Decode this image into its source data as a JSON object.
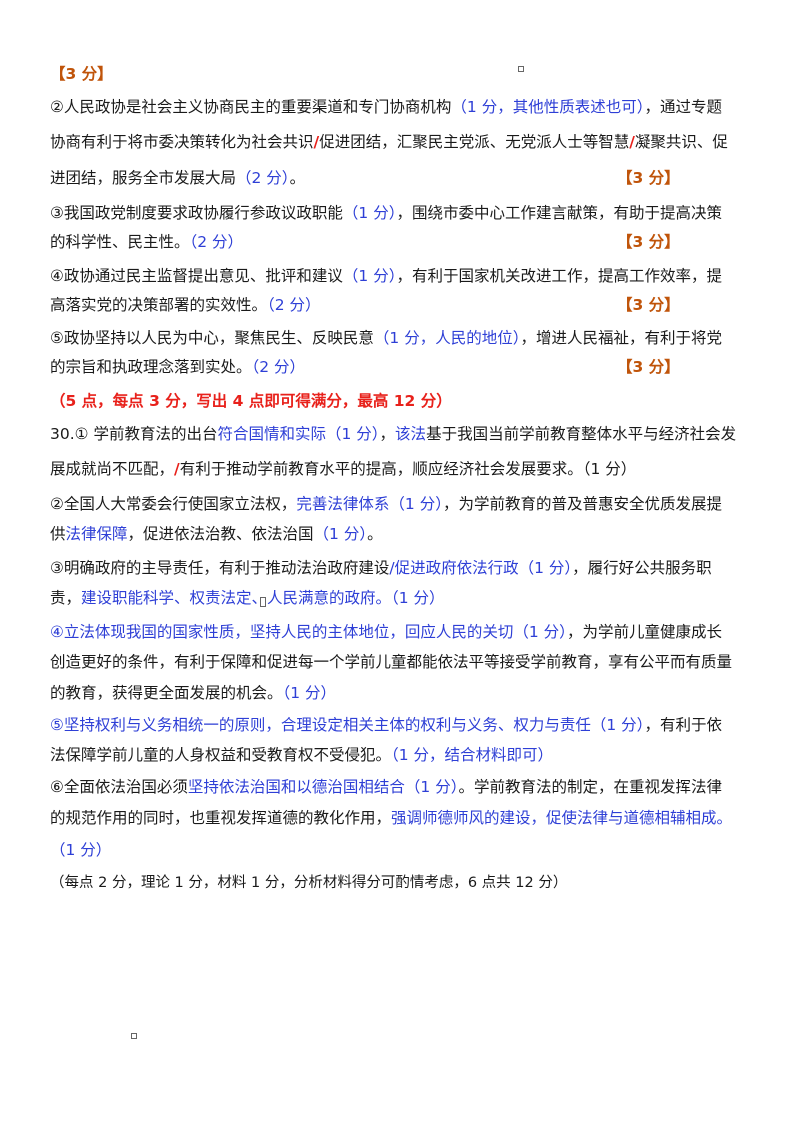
{
  "q29": {
    "score_top": "【3 分】",
    "p2_a": "②人民政协是社会主义协商民主的重要渠道和专门协商机构",
    "p2_b": "（1 分，其他性质表述也可）",
    "p2_c": "，通过专题",
    "p2_line2_a": "协商有利于将市委决策转化为社会共识",
    "p2_line2_b": "促进团结，汇聚民主党派、无党派人士等智慧",
    "p2_line2_c": "凝聚共识、促",
    "p2_line3_a": "进团结，服务全市发展大局",
    "p2_line3_b": "（2 分）",
    "p2_line3_c": "。",
    "p2_score": "【3 分】",
    "p3_a": "③我国政党制度要求政协履行参政议政职能",
    "p3_b": "（1 分）",
    "p3_c": "，围绕市委中心工作建言献策，有助于提高决策",
    "p3_line2_a": "的科学性、民主性。",
    "p3_line2_b": "（2 分）",
    "p3_score": "【3 分】",
    "p4_a": "④政协通过民主监督提出意见、批评和建议",
    "p4_b": "（1 分）",
    "p4_c": "，有利于国家机关改进工作，提高工作效率，提",
    "p4_line2_a": "高落实党的决策部署的实效性。",
    "p4_line2_b": "（2 分）",
    "p4_score": "【3 分】",
    "p5_a": "⑤政协坚持以人民为中心，聚焦民生、反映民意",
    "p5_b": "（1 分，人民的地位）",
    "p5_c": "，增进人民福祉，有利于将党",
    "p5_line2_a": "的宗旨和执政理念落到实处。",
    "p5_line2_b": "（2 分）",
    "p5_score": "【3 分】",
    "rule": "（5 点，每点  3 分，写出  4 点即可得满分，最高  12 分）",
    "slash": "/"
  },
  "q30": {
    "p1_a": "30.①  学前教育法的出台",
    "p1_b": "符合国情和实际（1 分）",
    "p1_c": "，",
    "p1_d": "该法",
    "p1_e": "基于我国当前学前教育整体水平与经济社会发",
    "p1_line2_a": "展成就尚不匹配，",
    "p1_line2_b": "有利于推动学前教育水平的提高，顺应经济社会发展要求。（1 分）",
    "p2_a": "②全国人大常委会行使国家立法权，",
    "p2_b": "完善法律体系（1 分）",
    "p2_c": "，为学前教育的普及普惠安全优质发展提",
    "p2_line2_a": "供",
    "p2_line2_b": "法律保障",
    "p2_line2_c": "，促进依法治教、依法治国",
    "p2_line2_d": "（1 分）",
    "p2_line2_e": "。",
    "p3_a": "③明确政府的主导责任，有利于推动法治政府建设",
    "p3_b": "/促进政府依法行政（1 分）",
    "p3_c": "，履行好公共服务职",
    "p3_line2_a": "责，",
    "p3_line2_b": "建设职能科学、权责法定、人民满意的政府。（1 分）",
    "p4_a": "④立法体现我国的国家性质，坚持人民的主体地位，回应人民的关切（1 分）",
    "p4_b": "，为学前儿童健康成长",
    "p4_line2": "创造更好的条件，有利于保障和促进每一个学前儿童都能依法平等接受学前教育，享有公平而有质量",
    "p4_line3_a": "的教育，获得更全面发展的机会。",
    "p4_line3_b": "（1 分）",
    "p5_a": "⑤坚持权利与义务相统一的原则，合理设定相关主体的权利与义务、权力与责任（1 分）",
    "p5_b": "，有利于依",
    "p5_line2_a": "法保障学前儿童的人身权益和受教育权不受侵犯。",
    "p5_line2_b": "（1 分，结合材料即可）",
    "p6_a": "⑥全面依法治国必须",
    "p6_b": "坚持依法治国和以德治国相结合（1 分）",
    "p6_c": "。学前教育法的制定，在重视发挥法律",
    "p6_line2_a": "的规范作用的同时，也重视发挥道德的教化作用，",
    "p6_line2_b": "强调师德师风的建设，促使法律与道德相辅相成。",
    "p6_line3": "（1 分）",
    "rule": "（每点  2 分，理论  1 分，材料  1 分，分析材料得分可酌情考虑，6 点共  12 分）"
  }
}
